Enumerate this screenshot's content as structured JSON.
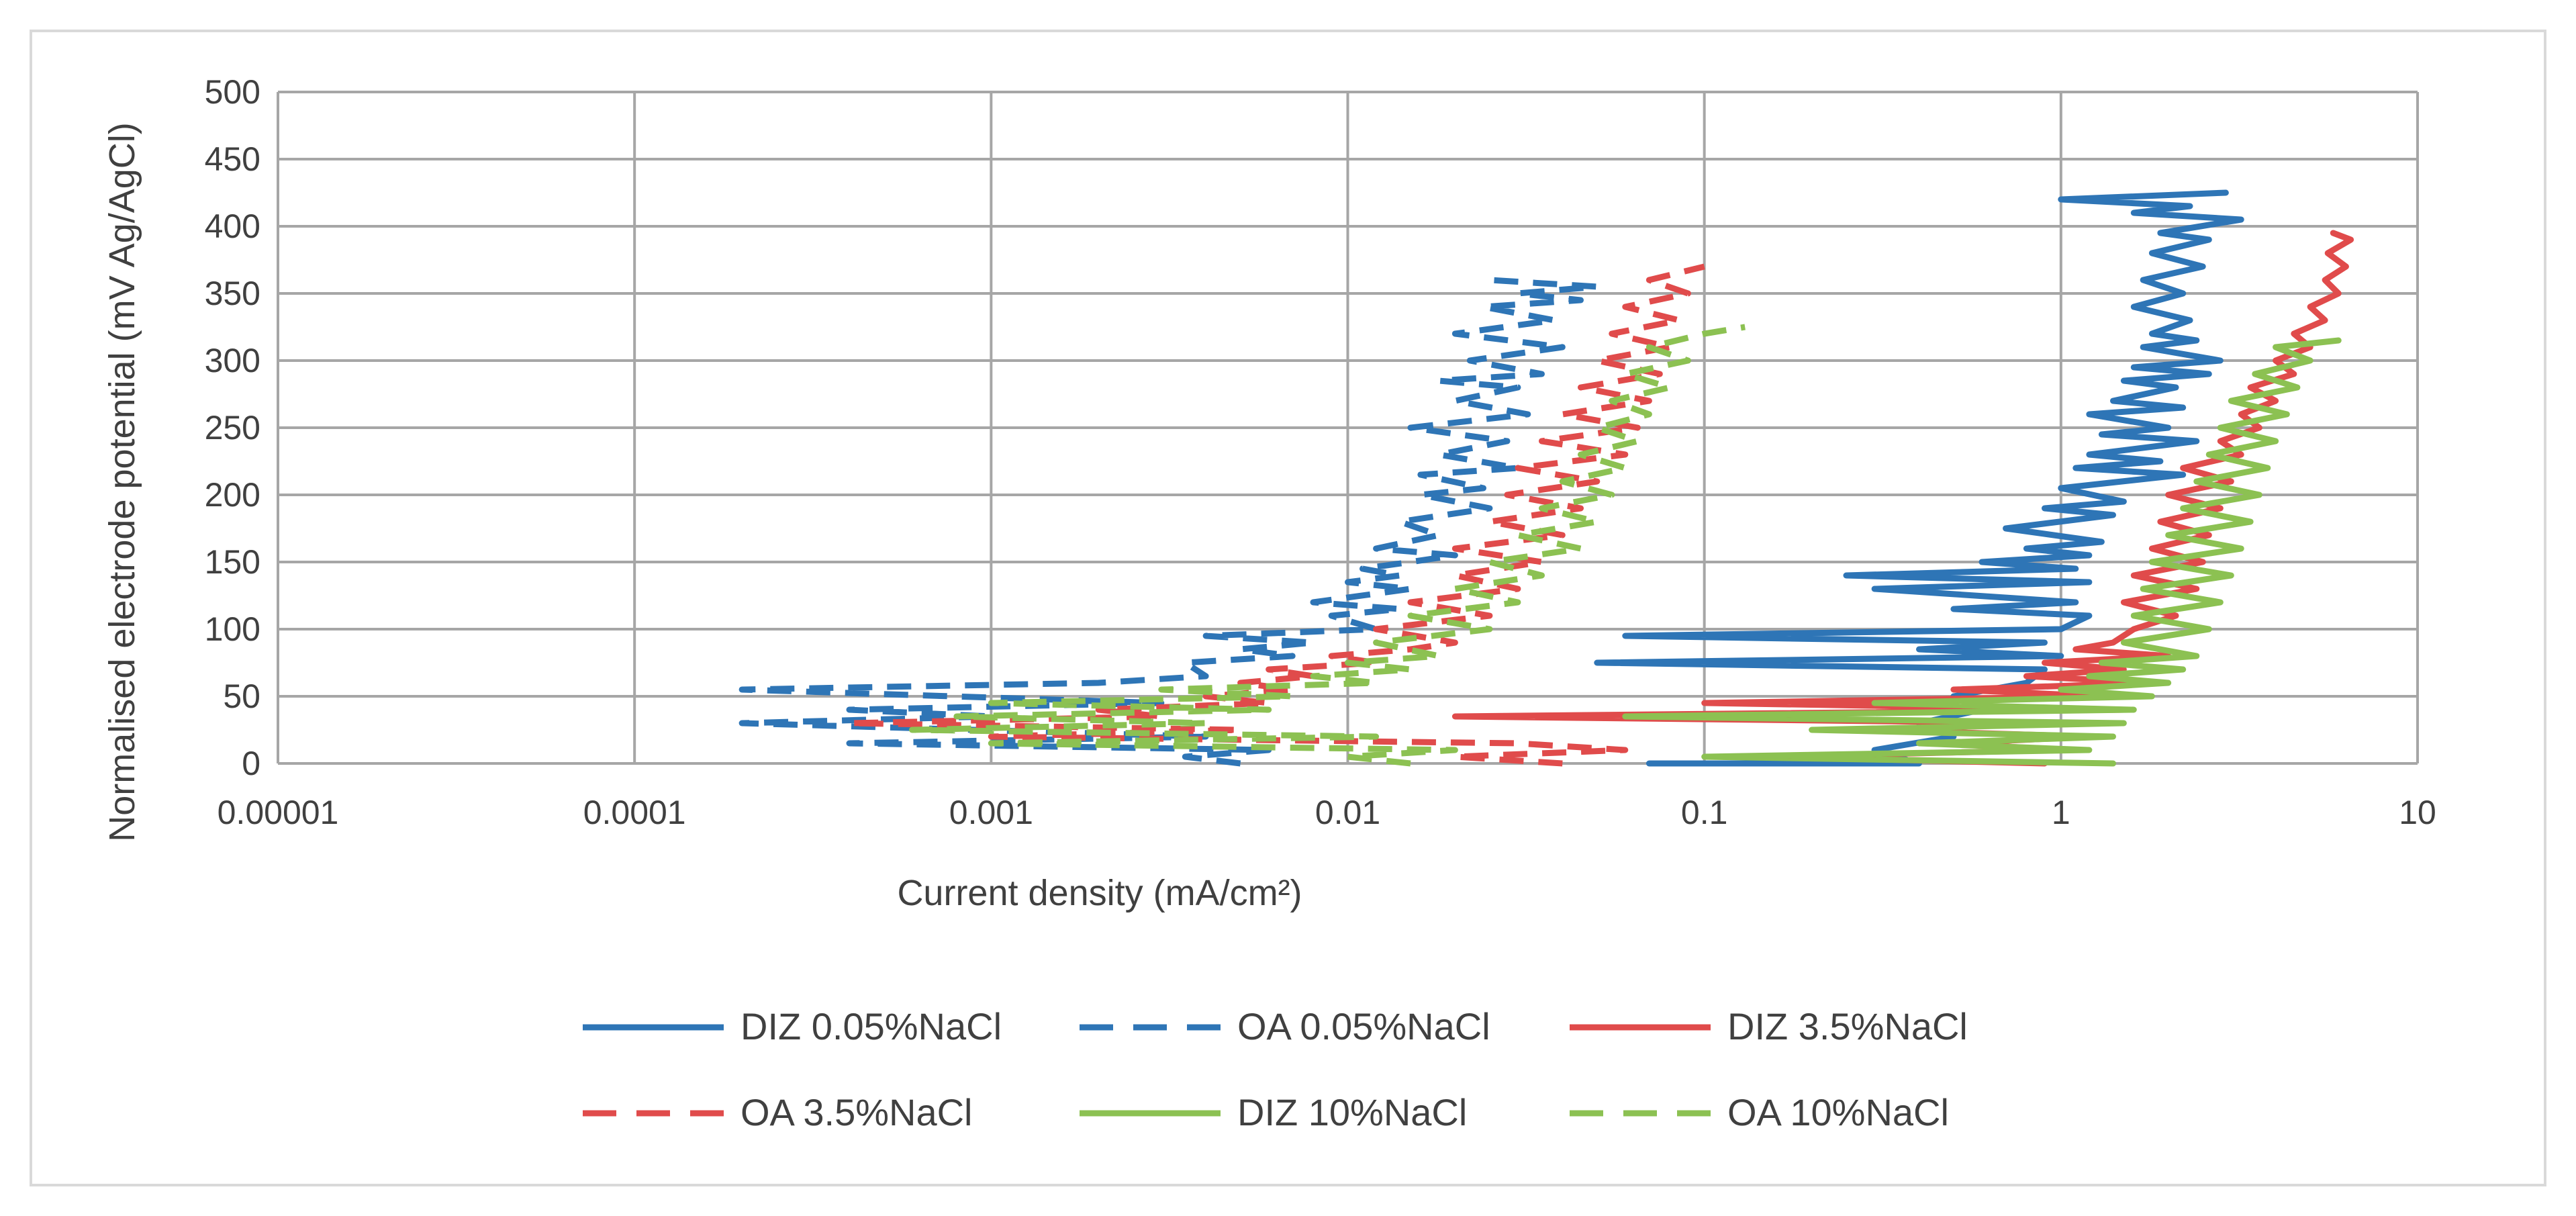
{
  "chart_data": {
    "type": "line",
    "title": "",
    "xlabel": "Current density (mA/cm²)",
    "ylabel": "Normalised electrode potential (mV Ag/AgCl)",
    "x_scale": "log",
    "xlim": [
      1e-05,
      10
    ],
    "ylim": [
      0,
      500
    ],
    "x_ticks": [
      "0.00001",
      "0.0001",
      "0.001",
      "0.01",
      "0.1",
      "1",
      "10"
    ],
    "y_ticks": [
      "0",
      "50",
      "100",
      "150",
      "200",
      "250",
      "300",
      "350",
      "400",
      "450",
      "500"
    ],
    "grid": true,
    "legend_position": "bottom",
    "series": [
      {
        "name": "DIZ 0.05%NaCl",
        "color": "#2e75b6",
        "dash": "solid",
        "points": [
          [
            0.07,
            0
          ],
          [
            0.4,
            0
          ],
          [
            0.3,
            10
          ],
          [
            0.5,
            20
          ],
          [
            0.4,
            30
          ],
          [
            0.6,
            40
          ],
          [
            0.5,
            50
          ],
          [
            0.8,
            60
          ],
          [
            0.9,
            70
          ],
          [
            0.05,
            75
          ],
          [
            1.0,
            80
          ],
          [
            0.4,
            85
          ],
          [
            0.9,
            90
          ],
          [
            0.06,
            95
          ],
          [
            1.0,
            100
          ],
          [
            1.2,
            110
          ],
          [
            0.5,
            115
          ],
          [
            1.1,
            120
          ],
          [
            0.3,
            130
          ],
          [
            1.2,
            135
          ],
          [
            0.25,
            140
          ],
          [
            1.1,
            145
          ],
          [
            0.6,
            150
          ],
          [
            1.2,
            155
          ],
          [
            0.8,
            160
          ],
          [
            1.3,
            165
          ],
          [
            0.7,
            175
          ],
          [
            1.4,
            185
          ],
          [
            0.9,
            190
          ],
          [
            1.5,
            195
          ],
          [
            1.0,
            205
          ],
          [
            2.2,
            215
          ],
          [
            1.1,
            220
          ],
          [
            1.9,
            225
          ],
          [
            1.2,
            230
          ],
          [
            2.4,
            240
          ],
          [
            1.3,
            245
          ],
          [
            2.0,
            250
          ],
          [
            1.2,
            260
          ],
          [
            2.2,
            265
          ],
          [
            1.4,
            270
          ],
          [
            2.1,
            280
          ],
          [
            1.5,
            285
          ],
          [
            2.6,
            290
          ],
          [
            1.6,
            295
          ],
          [
            2.8,
            300
          ],
          [
            1.7,
            310
          ],
          [
            2.4,
            315
          ],
          [
            1.8,
            320
          ],
          [
            2.3,
            330
          ],
          [
            1.6,
            340
          ],
          [
            2.2,
            350
          ],
          [
            1.7,
            360
          ],
          [
            2.5,
            370
          ],
          [
            1.8,
            380
          ],
          [
            2.6,
            390
          ],
          [
            1.9,
            395
          ],
          [
            3.2,
            405
          ],
          [
            1.6,
            410
          ],
          [
            2.3,
            415
          ],
          [
            1.0,
            420
          ],
          [
            2.9,
            425
          ]
        ]
      },
      {
        "name": "OA 0.05%NaCl",
        "color": "#2e75b6",
        "dash": "dash",
        "points": [
          [
            0.005,
            0
          ],
          [
            0.0035,
            5
          ],
          [
            0.006,
            10
          ],
          [
            0.0004,
            15
          ],
          [
            0.004,
            20
          ],
          [
            0.0002,
            30
          ],
          [
            0.001,
            35
          ],
          [
            0.0004,
            40
          ],
          [
            0.003,
            45
          ],
          [
            0.0002,
            55
          ],
          [
            0.002,
            60
          ],
          [
            0.004,
            65
          ],
          [
            0.0035,
            75
          ],
          [
            0.007,
            80
          ],
          [
            0.005,
            85
          ],
          [
            0.008,
            90
          ],
          [
            0.004,
            95
          ],
          [
            0.012,
            100
          ],
          [
            0.009,
            110
          ],
          [
            0.014,
            115
          ],
          [
            0.008,
            120
          ],
          [
            0.015,
            130
          ],
          [
            0.01,
            135
          ],
          [
            0.014,
            140
          ],
          [
            0.011,
            145
          ],
          [
            0.015,
            150
          ],
          [
            0.02,
            155
          ],
          [
            0.012,
            160
          ],
          [
            0.018,
            170
          ],
          [
            0.014,
            180
          ],
          [
            0.025,
            190
          ],
          [
            0.016,
            200
          ],
          [
            0.024,
            205
          ],
          [
            0.016,
            215
          ],
          [
            0.03,
            220
          ],
          [
            0.018,
            230
          ],
          [
            0.028,
            240
          ],
          [
            0.015,
            250
          ],
          [
            0.032,
            260
          ],
          [
            0.02,
            270
          ],
          [
            0.03,
            280
          ],
          [
            0.018,
            285
          ],
          [
            0.035,
            290
          ],
          [
            0.022,
            300
          ],
          [
            0.04,
            310
          ],
          [
            0.02,
            320
          ],
          [
            0.038,
            330
          ],
          [
            0.024,
            340
          ],
          [
            0.045,
            345
          ],
          [
            0.03,
            350
          ],
          [
            0.05,
            355
          ],
          [
            0.025,
            360
          ]
        ]
      },
      {
        "name": "DIZ 3.5%NaCl",
        "color": "#e04b4b",
        "dash": "solid",
        "points": [
          [
            0.9,
            0
          ],
          [
            0.15,
            5
          ],
          [
            1.0,
            10
          ],
          [
            0.5,
            15
          ],
          [
            1.2,
            20
          ],
          [
            0.3,
            25
          ],
          [
            1.0,
            30
          ],
          [
            0.02,
            35
          ],
          [
            1.5,
            40
          ],
          [
            0.1,
            45
          ],
          [
            1.3,
            50
          ],
          [
            0.5,
            55
          ],
          [
            1.8,
            60
          ],
          [
            0.8,
            65
          ],
          [
            1.5,
            70
          ],
          [
            0.9,
            75
          ],
          [
            2.0,
            80
          ],
          [
            1.1,
            85
          ],
          [
            1.4,
            90
          ],
          [
            1.6,
            100
          ],
          [
            2.1,
            110
          ],
          [
            1.5,
            120
          ],
          [
            2.4,
            130
          ],
          [
            1.6,
            140
          ],
          [
            2.5,
            150
          ],
          [
            1.8,
            160
          ],
          [
            2.6,
            170
          ],
          [
            1.9,
            180
          ],
          [
            2.8,
            190
          ],
          [
            2.0,
            200
          ],
          [
            3.0,
            210
          ],
          [
            2.2,
            220
          ],
          [
            3.2,
            230
          ],
          [
            2.8,
            240
          ],
          [
            3.6,
            250
          ],
          [
            3.2,
            260
          ],
          [
            4.0,
            270
          ],
          [
            3.4,
            280
          ],
          [
            4.5,
            290
          ],
          [
            4.0,
            300
          ],
          [
            5.0,
            310
          ],
          [
            4.5,
            320
          ],
          [
            5.5,
            330
          ],
          [
            5.0,
            340
          ],
          [
            6.0,
            350
          ],
          [
            5.5,
            360
          ],
          [
            6.3,
            370
          ],
          [
            5.6,
            380
          ],
          [
            6.5,
            390
          ],
          [
            5.8,
            395
          ]
        ]
      },
      {
        "name": "OA 3.5%NaCl",
        "color": "#e04b4b",
        "dash": "dash",
        "points": [
          [
            0.04,
            0
          ],
          [
            0.02,
            5
          ],
          [
            0.06,
            10
          ],
          [
            0.03,
            15
          ],
          [
            0.001,
            20
          ],
          [
            0.005,
            25
          ],
          [
            0.0004,
            30
          ],
          [
            0.003,
            35
          ],
          [
            0.002,
            40
          ],
          [
            0.006,
            45
          ],
          [
            0.004,
            50
          ],
          [
            0.007,
            55
          ],
          [
            0.005,
            60
          ],
          [
            0.008,
            65
          ],
          [
            0.006,
            70
          ],
          [
            0.012,
            75
          ],
          [
            0.009,
            80
          ],
          [
            0.015,
            85
          ],
          [
            0.02,
            90
          ],
          [
            0.012,
            100
          ],
          [
            0.025,
            110
          ],
          [
            0.015,
            120
          ],
          [
            0.03,
            130
          ],
          [
            0.02,
            140
          ],
          [
            0.035,
            150
          ],
          [
            0.02,
            160
          ],
          [
            0.04,
            170
          ],
          [
            0.025,
            180
          ],
          [
            0.045,
            190
          ],
          [
            0.028,
            200
          ],
          [
            0.05,
            210
          ],
          [
            0.03,
            220
          ],
          [
            0.06,
            230
          ],
          [
            0.035,
            240
          ],
          [
            0.065,
            250
          ],
          [
            0.04,
            260
          ],
          [
            0.07,
            270
          ],
          [
            0.045,
            280
          ],
          [
            0.075,
            290
          ],
          [
            0.05,
            300
          ],
          [
            0.08,
            310
          ],
          [
            0.055,
            320
          ],
          [
            0.085,
            330
          ],
          [
            0.06,
            340
          ],
          [
            0.09,
            350
          ],
          [
            0.07,
            360
          ],
          [
            0.1,
            370
          ]
        ]
      },
      {
        "name": "DIZ 10%NaCl",
        "color": "#8cc152",
        "dash": "solid",
        "points": [
          [
            1.4,
            0
          ],
          [
            0.1,
            5
          ],
          [
            1.2,
            10
          ],
          [
            0.4,
            15
          ],
          [
            1.4,
            20
          ],
          [
            0.2,
            25
          ],
          [
            1.5,
            30
          ],
          [
            0.06,
            35
          ],
          [
            1.6,
            40
          ],
          [
            0.3,
            45
          ],
          [
            1.8,
            50
          ],
          [
            1.0,
            55
          ],
          [
            2.0,
            60
          ],
          [
            1.2,
            65
          ],
          [
            2.2,
            70
          ],
          [
            1.3,
            75
          ],
          [
            2.4,
            80
          ],
          [
            1.5,
            90
          ],
          [
            2.6,
            100
          ],
          [
            1.6,
            110
          ],
          [
            2.8,
            120
          ],
          [
            1.7,
            130
          ],
          [
            3.0,
            140
          ],
          [
            1.8,
            150
          ],
          [
            3.2,
            160
          ],
          [
            2.0,
            170
          ],
          [
            3.4,
            180
          ],
          [
            2.2,
            190
          ],
          [
            3.6,
            200
          ],
          [
            2.4,
            210
          ],
          [
            3.8,
            220
          ],
          [
            2.6,
            230
          ],
          [
            4.0,
            240
          ],
          [
            2.8,
            250
          ],
          [
            4.3,
            260
          ],
          [
            3.0,
            270
          ],
          [
            4.6,
            280
          ],
          [
            3.5,
            290
          ],
          [
            5.0,
            300
          ],
          [
            4.0,
            310
          ],
          [
            6.0,
            315
          ]
        ]
      },
      {
        "name": "OA 10%NaCl",
        "color": "#8cc152",
        "dash": "dash",
        "points": [
          [
            0.015,
            0
          ],
          [
            0.01,
            5
          ],
          [
            0.02,
            10
          ],
          [
            0.001,
            15
          ],
          [
            0.012,
            20
          ],
          [
            0.0006,
            25
          ],
          [
            0.004,
            30
          ],
          [
            0.0008,
            35
          ],
          [
            0.006,
            40
          ],
          [
            0.001,
            45
          ],
          [
            0.007,
            50
          ],
          [
            0.003,
            55
          ],
          [
            0.012,
            60
          ],
          [
            0.008,
            65
          ],
          [
            0.015,
            70
          ],
          [
            0.01,
            75
          ],
          [
            0.018,
            80
          ],
          [
            0.012,
            90
          ],
          [
            0.025,
            100
          ],
          [
            0.015,
            110
          ],
          [
            0.03,
            120
          ],
          [
            0.02,
            130
          ],
          [
            0.035,
            140
          ],
          [
            0.025,
            150
          ],
          [
            0.045,
            160
          ],
          [
            0.03,
            170
          ],
          [
            0.05,
            180
          ],
          [
            0.035,
            190
          ],
          [
            0.055,
            200
          ],
          [
            0.04,
            210
          ],
          [
            0.06,
            220
          ],
          [
            0.045,
            230
          ],
          [
            0.065,
            240
          ],
          [
            0.05,
            250
          ],
          [
            0.07,
            260
          ],
          [
            0.055,
            270
          ],
          [
            0.08,
            280
          ],
          [
            0.06,
            290
          ],
          [
            0.09,
            300
          ],
          [
            0.07,
            310
          ],
          [
            0.1,
            320
          ],
          [
            0.13,
            325
          ]
        ]
      }
    ]
  }
}
